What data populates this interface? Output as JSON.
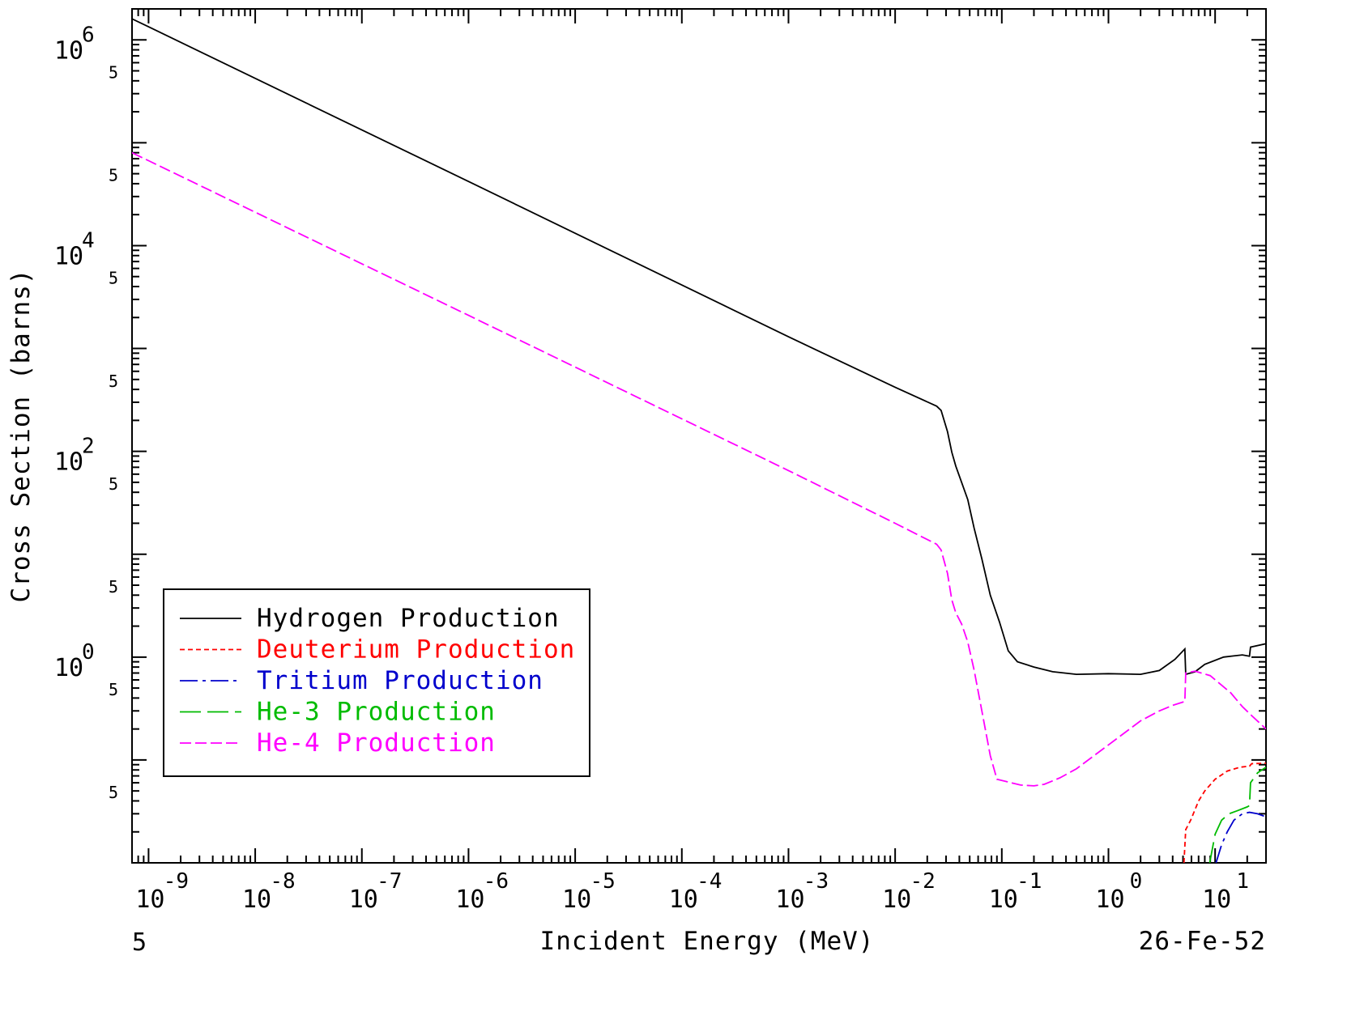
{
  "chart_data": {
    "type": "line",
    "title": "",
    "xlabel": "Incident Energy (MeV)",
    "ylabel": "Cross Section (barns)",
    "x_scale": "log",
    "y_scale": "log",
    "xlim": [
      7e-10,
      30
    ],
    "ylim": [
      0.01,
      2000000
    ],
    "grid": false,
    "legend_position": "lower-left",
    "x_ticks": [
      {
        "value": 1e-09,
        "base": "10",
        "exp": "-9"
      },
      {
        "value": 1e-08,
        "base": "10",
        "exp": "-8"
      },
      {
        "value": 1e-07,
        "base": "10",
        "exp": "-7"
      },
      {
        "value": 1e-06,
        "base": "10",
        "exp": "-6"
      },
      {
        "value": 1e-05,
        "base": "10",
        "exp": "-5"
      },
      {
        "value": 0.0001,
        "base": "10",
        "exp": "-4"
      },
      {
        "value": 0.001,
        "base": "10",
        "exp": "-3"
      },
      {
        "value": 0.01,
        "base": "10",
        "exp": "-2"
      },
      {
        "value": 0.1,
        "base": "10",
        "exp": "-1"
      },
      {
        "value": 1,
        "base": "10",
        "exp": "0"
      },
      {
        "value": 10,
        "base": "10",
        "exp": "1"
      }
    ],
    "y_ticks": [
      {
        "value": 1000000,
        "base": "10",
        "exp": "6"
      },
      {
        "value": 10000,
        "base": "10",
        "exp": "4"
      },
      {
        "value": 100,
        "base": "10",
        "exp": "2"
      },
      {
        "value": 1,
        "base": "10",
        "exp": "0"
      }
    ],
    "x_five_label": "5",
    "y_five_label": "5",
    "y_five_values": [
      500000,
      50000,
      5000,
      500,
      50,
      5,
      0.5,
      0.05
    ],
    "footer_left": "5",
    "footer_right": "26-Fe-52",
    "series": [
      {
        "name": "Hydrogen Production",
        "color": "#000000",
        "dash": "solid",
        "points": [
          [
            7e-10,
            1600000
          ],
          [
            1e-09,
            1340000
          ],
          [
            1e-06,
            42000
          ],
          [
            0.001,
            1300
          ],
          [
            0.01,
            420
          ],
          [
            0.0245,
            275
          ],
          [
            0.027,
            250
          ],
          [
            0.031,
            155
          ],
          [
            0.034,
            98
          ],
          [
            0.037,
            72
          ],
          [
            0.042,
            50
          ],
          [
            0.048,
            34
          ],
          [
            0.055,
            18
          ],
          [
            0.065,
            9
          ],
          [
            0.078,
            4
          ],
          [
            0.095,
            2.2
          ],
          [
            0.115,
            1.15
          ],
          [
            0.14,
            0.9
          ],
          [
            0.2,
            0.8
          ],
          [
            0.3,
            0.72
          ],
          [
            0.5,
            0.68
          ],
          [
            1.0,
            0.69
          ],
          [
            2.0,
            0.68
          ],
          [
            3.0,
            0.74
          ],
          [
            4.2,
            0.95
          ],
          [
            5.2,
            1.2
          ],
          [
            5.3,
            0.68
          ],
          [
            6.5,
            0.72
          ],
          [
            8.0,
            0.85
          ],
          [
            12.0,
            1.0
          ],
          [
            18.0,
            1.05
          ],
          [
            21.0,
            1.02
          ],
          [
            21.5,
            1.25
          ],
          [
            30.0,
            1.35
          ]
        ]
      },
      {
        "name": "Deuterium Production",
        "color": "#ff0000",
        "dash": "6,4",
        "points": [
          [
            5.1,
            0.01
          ],
          [
            5.3,
            0.021
          ],
          [
            5.9,
            0.026
          ],
          [
            7.0,
            0.04
          ],
          [
            8.0,
            0.05
          ],
          [
            10.0,
            0.065
          ],
          [
            13.0,
            0.078
          ],
          [
            17.0,
            0.085
          ],
          [
            21.0,
            0.087
          ],
          [
            22.0,
            0.092
          ],
          [
            30.0,
            0.093
          ]
        ]
      },
      {
        "name": "Tritium Production",
        "color": "#0000cc",
        "dash": "22,6,4,6",
        "points": [
          [
            10.2,
            0.01
          ],
          [
            11.5,
            0.015
          ],
          [
            13.0,
            0.02
          ],
          [
            15.0,
            0.026
          ],
          [
            18.0,
            0.03
          ],
          [
            21.0,
            0.031
          ],
          [
            25.0,
            0.03
          ],
          [
            30.0,
            0.028
          ]
        ]
      },
      {
        "name": "He-3 Production",
        "color": "#00bb00",
        "dash": "26,8",
        "points": [
          [
            8.9,
            0.01
          ],
          [
            10.0,
            0.019
          ],
          [
            11.5,
            0.026
          ],
          [
            13.5,
            0.03
          ],
          [
            16.0,
            0.032
          ],
          [
            20.0,
            0.035
          ],
          [
            21.0,
            0.036
          ],
          [
            21.5,
            0.06
          ],
          [
            25.0,
            0.075
          ],
          [
            30.0,
            0.085
          ]
        ]
      },
      {
        "name": "He-4 Production",
        "color": "#ff00ff",
        "dash": "14,5",
        "points": [
          [
            7e-10,
            80000
          ],
          [
            1e-09,
            67000
          ],
          [
            1e-06,
            2100
          ],
          [
            0.001,
            65
          ],
          [
            0.01,
            20
          ],
          [
            0.0245,
            12.5
          ],
          [
            0.027,
            11
          ],
          [
            0.031,
            6.5
          ],
          [
            0.034,
            3.6
          ],
          [
            0.037,
            2.7
          ],
          [
            0.042,
            2.1
          ],
          [
            0.048,
            1.4
          ],
          [
            0.055,
            0.75
          ],
          [
            0.065,
            0.3
          ],
          [
            0.078,
            0.11
          ],
          [
            0.09,
            0.065
          ],
          [
            0.15,
            0.057
          ],
          [
            0.2,
            0.056
          ],
          [
            0.25,
            0.058
          ],
          [
            0.35,
            0.067
          ],
          [
            0.5,
            0.082
          ],
          [
            1.0,
            0.14
          ],
          [
            2.0,
            0.24
          ],
          [
            3.0,
            0.3
          ],
          [
            4.0,
            0.34
          ],
          [
            5.2,
            0.37
          ],
          [
            5.3,
            0.7
          ],
          [
            6.5,
            0.73
          ],
          [
            9.0,
            0.66
          ],
          [
            14.0,
            0.45
          ],
          [
            18.0,
            0.33
          ],
          [
            22.0,
            0.27
          ],
          [
            30.0,
            0.2
          ]
        ]
      }
    ]
  }
}
